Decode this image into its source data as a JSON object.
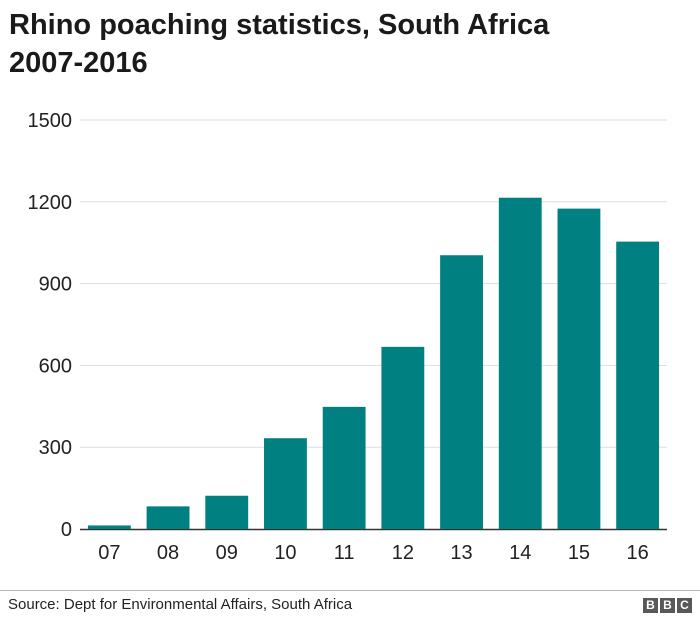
{
  "chart_data": {
    "type": "bar",
    "title": "Rhino poaching statistics, South Africa",
    "subtitle": "2007-2016",
    "categories": [
      "07",
      "08",
      "09",
      "10",
      "11",
      "12",
      "13",
      "14",
      "15",
      "16"
    ],
    "values": [
      13,
      83,
      122,
      333,
      448,
      668,
      1004,
      1215,
      1175,
      1054
    ],
    "ylim": [
      0,
      1500
    ],
    "yticks": [
      0,
      300,
      600,
      900,
      1200,
      1500
    ],
    "xlabel": "",
    "ylabel": "",
    "grid": true,
    "bar_color": "#008080",
    "grid_color": "#dddddd",
    "axis_color": "#333333"
  },
  "source": "Source: Dept for Environmental Affairs, South Africa",
  "logo": [
    "B",
    "B",
    "C"
  ]
}
